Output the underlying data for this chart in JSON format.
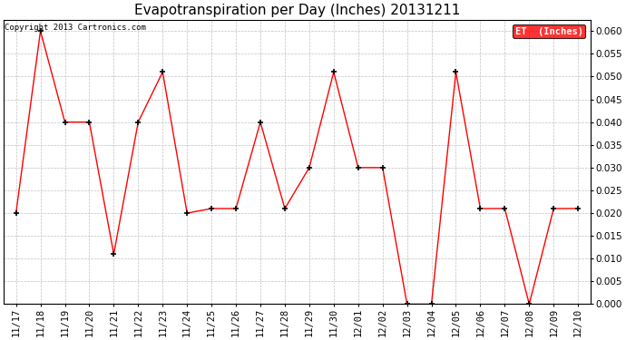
{
  "title": "Evapotranspiration per Day (Inches) 20131211",
  "copyright": "Copyright 2013 Cartronics.com",
  "legend_label": "ET  (Inches)",
  "legend_bg": "#FF0000",
  "legend_text_color": "#FFFFFF",
  "line_color": "#FF0000",
  "marker_color": "#000000",
  "background_color": "#FFFFFF",
  "grid_color": "#C0C0C0",
  "x_labels": [
    "11/17",
    "11/18",
    "11/19",
    "11/20",
    "11/21",
    "11/22",
    "11/23",
    "11/24",
    "11/25",
    "11/26",
    "11/27",
    "11/28",
    "11/29",
    "11/30",
    "12/01",
    "12/02",
    "12/03",
    "12/04",
    "12/05",
    "12/06",
    "12/07",
    "12/08",
    "12/09",
    "12/10"
  ],
  "y_values": [
    0.02,
    0.06,
    0.04,
    0.04,
    0.011,
    0.04,
    0.051,
    0.02,
    0.021,
    0.021,
    0.04,
    0.021,
    0.03,
    0.051,
    0.03,
    0.03,
    0.0,
    0.0,
    0.051,
    0.021,
    0.021,
    0.0,
    0.021,
    0.021
  ],
  "ylim": [
    0.0,
    0.0625
  ],
  "yticks": [
    0.0,
    0.005,
    0.01,
    0.015,
    0.02,
    0.025,
    0.03,
    0.035,
    0.04,
    0.045,
    0.05,
    0.055,
    0.06
  ],
  "title_fontsize": 11,
  "tick_fontsize": 7.5,
  "copyright_fontsize": 6.5
}
